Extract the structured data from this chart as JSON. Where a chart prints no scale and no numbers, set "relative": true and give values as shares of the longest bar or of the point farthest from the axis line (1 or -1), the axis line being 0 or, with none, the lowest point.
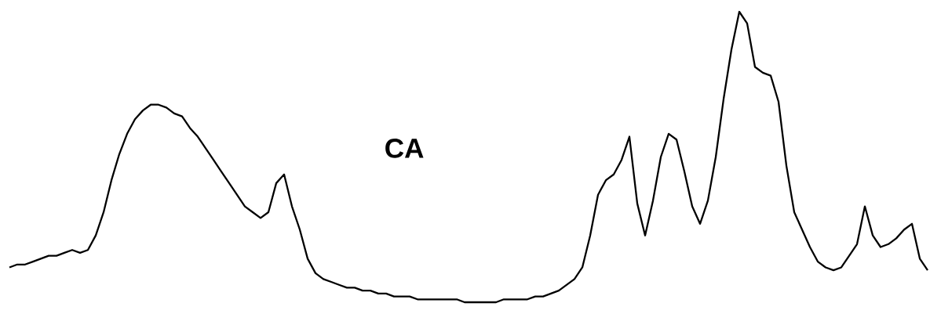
{
  "chart_data": {
    "type": "line",
    "relative": true,
    "color": "#000000",
    "annotations": [
      "CA"
    ],
    "categories": [
      null,
      null,
      null,
      null,
      null,
      null,
      null,
      null,
      null,
      null,
      null,
      null,
      null,
      null,
      null,
      null,
      null,
      null,
      null,
      null,
      null,
      null,
      null,
      null,
      null,
      null,
      null,
      null,
      null,
      null,
      null,
      null,
      null,
      null,
      null,
      null,
      null,
      null,
      null,
      null,
      null,
      null,
      null,
      null,
      null,
      null,
      null,
      null,
      null,
      null,
      null,
      null,
      null,
      null,
      null,
      null,
      null,
      null,
      null,
      null,
      null,
      null,
      null,
      null,
      null,
      null,
      null,
      null,
      null,
      null,
      null,
      null,
      null,
      null,
      null,
      null,
      null,
      null,
      null,
      null,
      null,
      null,
      null,
      null,
      null,
      null,
      null,
      null,
      null,
      null,
      null,
      null,
      null,
      null,
      null,
      null,
      null,
      null,
      null,
      null,
      null,
      null,
      null,
      null,
      null,
      null,
      null,
      null,
      null,
      null,
      null,
      null,
      null,
      null,
      null,
      null,
      null,
      null
    ],
    "values": [
      0.12,
      0.13,
      0.13,
      0.14,
      0.15,
      0.16,
      0.16,
      0.17,
      0.18,
      0.17,
      0.18,
      0.23,
      0.31,
      0.42,
      0.51,
      0.58,
      0.63,
      0.66,
      0.68,
      0.68,
      0.67,
      0.65,
      0.64,
      0.6,
      0.57,
      0.53,
      0.49,
      0.45,
      0.41,
      0.37,
      0.33,
      0.31,
      0.29,
      0.31,
      0.41,
      0.44,
      0.33,
      0.25,
      0.15,
      0.1,
      0.08,
      0.07,
      0.06,
      0.05,
      0.05,
      0.04,
      0.04,
      0.03,
      0.03,
      0.02,
      0.02,
      0.02,
      0.01,
      0.01,
      0.01,
      0.01,
      0.01,
      0.01,
      0,
      0,
      0,
      0,
      0,
      0.01,
      0.01,
      0.01,
      0.01,
      0.02,
      0.02,
      0.03,
      0.04,
      0.06,
      0.08,
      0.12,
      0.23,
      0.37,
      0.42,
      0.44,
      0.49,
      0.57,
      0.34,
      0.23,
      0.35,
      0.5,
      0.58,
      0.56,
      0.45,
      0.33,
      0.27,
      0.35,
      0.5,
      0.7,
      0.87,
      1,
      0.96,
      0.81,
      0.79,
      0.78,
      0.69,
      0.47,
      0.31,
      0.25,
      0.19,
      0.14,
      0.12,
      0.11,
      0.12,
      0.16,
      0.2,
      0.33,
      0.23,
      0.19,
      0.2,
      0.22,
      0.25,
      0.27,
      0.15,
      0.11
    ]
  }
}
